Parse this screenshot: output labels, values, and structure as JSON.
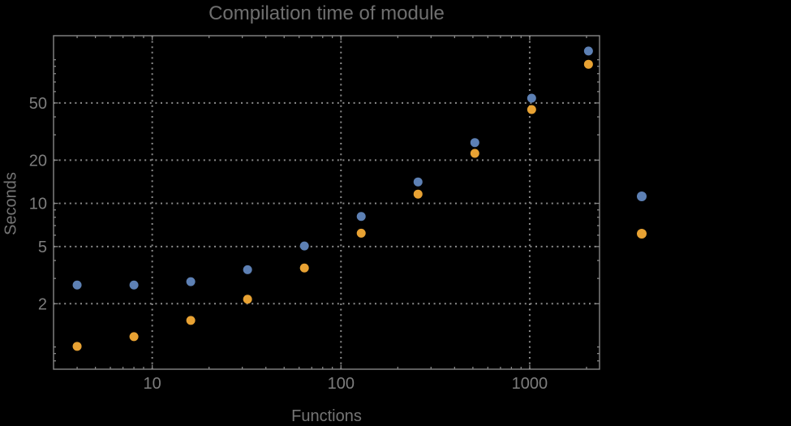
{
  "colors": {
    "background": "#000000",
    "frame": "#878787",
    "gridline": "#8a8a8a",
    "tick_label": "#7d7d7d",
    "title_text": "#6f6f6f",
    "axis_label_text": "#757575",
    "series_blue": "#5d80b4",
    "series_orange": "#e8a233"
  },
  "chart_data": {
    "type": "scatter",
    "title": "Compilation time of module",
    "xlabel": "Functions",
    "ylabel": "Seconds",
    "xscale": "log",
    "yscale": "log",
    "xlim": [
      3.0,
      2344
    ],
    "ylim": [
      0.7,
      147
    ],
    "xticks": [
      10,
      100,
      1000
    ],
    "xtick_labels": [
      "10",
      "100",
      "1000"
    ],
    "yticks": [
      2,
      5,
      10,
      20,
      50
    ],
    "ytick_labels": [
      "2",
      "5",
      "10",
      "20",
      "50"
    ],
    "grid": "dotted major gridlines, frame on all four sides with minor log ticks",
    "x": [
      4,
      8,
      16,
      32,
      64,
      128,
      256,
      512,
      1024,
      2048
    ],
    "series": [
      {
        "label": "",
        "color": "#5d80b4",
        "values": [
          2.7,
          2.7,
          2.85,
          3.45,
          5.05,
          8.1,
          14.1,
          26.5,
          54,
          115
        ]
      },
      {
        "label": "",
        "color": "#e8a233",
        "values": [
          1.01,
          1.18,
          1.53,
          2.15,
          3.55,
          6.2,
          11.6,
          22.3,
          45,
          93
        ]
      }
    ]
  },
  "legend": {
    "position": "right-center",
    "markers": [
      {
        "label": "",
        "color": "#5d80b4"
      },
      {
        "label": "",
        "color": "#e8a233"
      }
    ]
  }
}
